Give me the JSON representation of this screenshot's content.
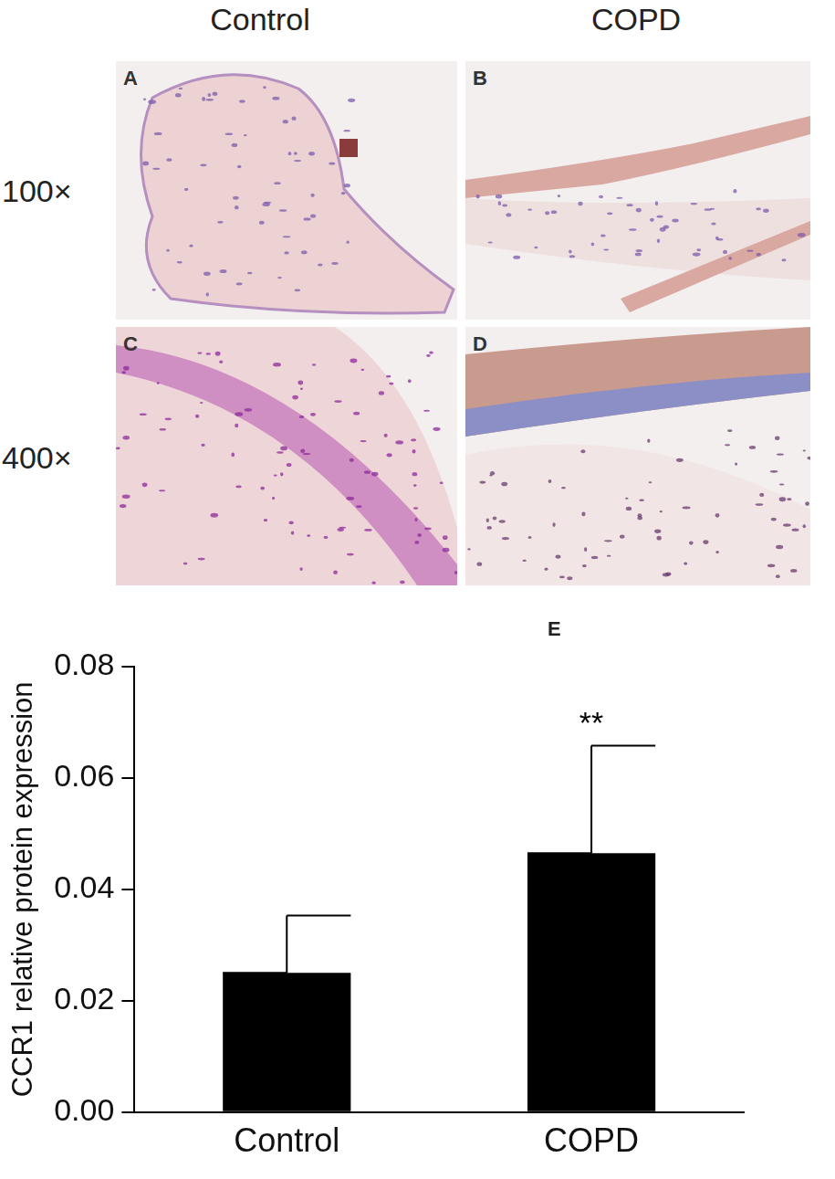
{
  "figure": {
    "column_labels": [
      "Control",
      "COPD"
    ],
    "row_labels": [
      "100×",
      "400×"
    ],
    "panels": [
      "A",
      "B",
      "C",
      "D",
      "E"
    ]
  },
  "chart_data": {
    "type": "bar",
    "categories": [
      "Control",
      "COPD"
    ],
    "values": [
      0.025,
      0.0465
    ],
    "errors": [
      0.0103,
      0.0193
    ],
    "color": "#000000",
    "y_label": "CCR1 relative protein expression",
    "ylim": [
      0,
      0.08
    ],
    "yticks": [
      {
        "value": 0,
        "label": "0.00"
      },
      {
        "value": 0.02,
        "label": "0.02"
      },
      {
        "value": 0.04,
        "label": "0.04"
      },
      {
        "value": 0.06,
        "label": "0.06"
      },
      {
        "value": 0.08,
        "label": "0.08"
      }
    ],
    "annotations": [
      {
        "category": "COPD",
        "text": "**"
      }
    ],
    "grid": false
  }
}
